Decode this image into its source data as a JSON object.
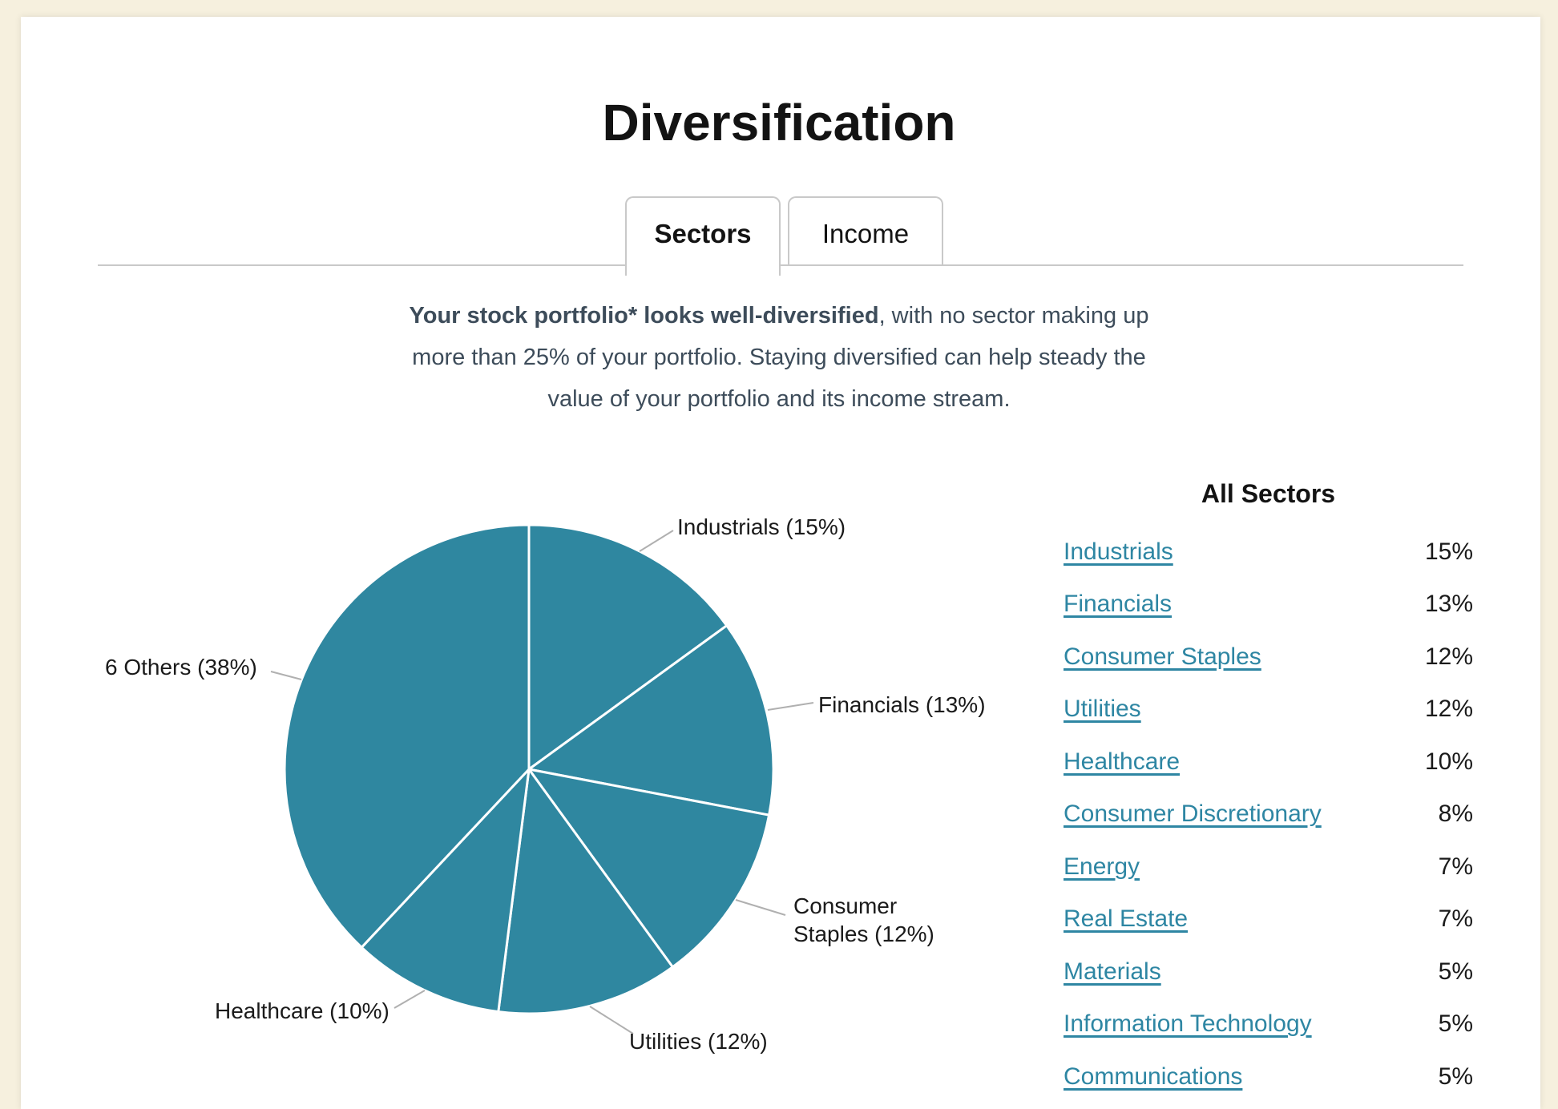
{
  "page": {
    "title": "Diversification"
  },
  "tabs": [
    {
      "label": "Sectors",
      "active": true
    },
    {
      "label": "Income",
      "active": false
    }
  ],
  "intro": {
    "lines": [
      {
        "bold": "Your stock portfolio* looks well-diversified",
        "rest": ", with no sector making up"
      },
      {
        "bold": "",
        "rest": "more than 25% of your portfolio. Staying diversified can help steady the"
      },
      {
        "bold": "",
        "rest": "value of your portfolio and its income stream."
      }
    ]
  },
  "chart_data": {
    "type": "pie",
    "title": "",
    "start_angle_deg": 0,
    "direction": "clockwise",
    "pie_color": "#2f87a0",
    "slice_divider_color": "#ffffff",
    "leader_line_color": "#b0b0b0",
    "slices": [
      {
        "label": "Industrials",
        "pct": 15,
        "callout": "Industrials (15%)"
      },
      {
        "label": "Financials",
        "pct": 13,
        "callout": "Financials (13%)"
      },
      {
        "label": "Consumer Staples",
        "pct": 12,
        "callout": "Consumer Staples (12%)"
      },
      {
        "label": "Utilities",
        "pct": 12,
        "callout": "Utilities (12%)"
      },
      {
        "label": "Healthcare",
        "pct": 10,
        "callout": "Healthcare (10%)"
      },
      {
        "label": "6 Others",
        "pct": 38,
        "callout": "6 Others (38%)"
      }
    ]
  },
  "all_sectors": {
    "heading": "All Sectors",
    "link_color": "#2e86a3",
    "rows": [
      {
        "label": "Industrials",
        "value": "15%"
      },
      {
        "label": "Financials",
        "value": "13%"
      },
      {
        "label": "Consumer Staples",
        "value": "12%"
      },
      {
        "label": "Utilities",
        "value": "12%"
      },
      {
        "label": "Healthcare",
        "value": "10%"
      },
      {
        "label": "Consumer Discretionary",
        "value": "8%"
      },
      {
        "label": "Energy",
        "value": "7%"
      },
      {
        "label": "Real Estate",
        "value": "7%"
      },
      {
        "label": "Materials",
        "value": "5%"
      },
      {
        "label": "Information Technology",
        "value": "5%"
      },
      {
        "label": "Communications",
        "value": "5%"
      }
    ]
  }
}
